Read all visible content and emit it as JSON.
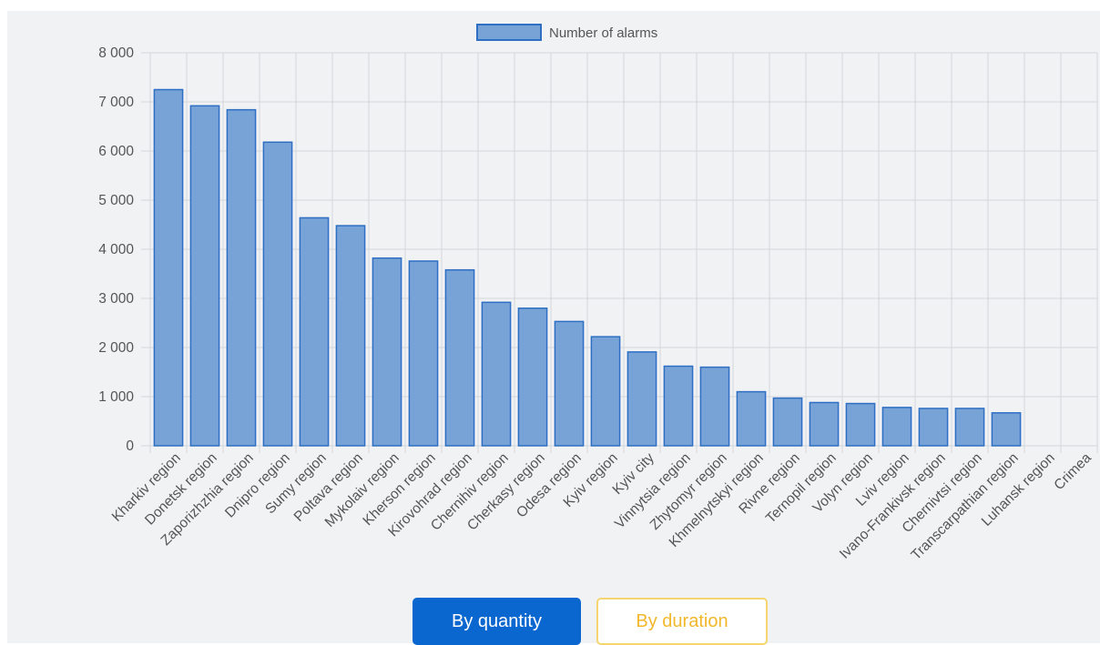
{
  "chart_data": {
    "type": "bar",
    "legend": {
      "label": "Number of alarms",
      "position": "top-center"
    },
    "categories": [
      "Kharkiv region",
      "Donetsk region",
      "Zaporizhzhia region",
      "Dnipro region",
      "Sumy region",
      "Poltava region",
      "Mykolaiv region",
      "Kherson region",
      "Kirovohrad region",
      "Chernihiv region",
      "Cherkasy region",
      "Odesa region",
      "Kyiv region",
      "Kyiv city",
      "Vinnytsia region",
      "Zhytomyr region",
      "Khmelnytskyi region",
      "Rivne region",
      "Ternopil region",
      "Volyn region",
      "Lviv region",
      "Ivano-Frankivsk region",
      "Chernivtsi region",
      "Transcarpathian region",
      "Luhansk region",
      "Crimea"
    ],
    "series": [
      {
        "name": "Number of alarms",
        "values": [
          7250,
          6920,
          6840,
          6180,
          4640,
          4480,
          3820,
          3760,
          3580,
          2920,
          2800,
          2530,
          2220,
          1910,
          1620,
          1600,
          1100,
          970,
          880,
          860,
          780,
          760,
          760,
          670,
          0,
          0
        ]
      }
    ],
    "ylim": [
      0,
      8000
    ],
    "yticks": [
      0,
      1000,
      2000,
      3000,
      4000,
      5000,
      6000,
      7000,
      8000
    ],
    "ytick_labels": [
      "0",
      "1 000",
      "2 000",
      "3 000",
      "4 000",
      "5 000",
      "6 000",
      "7 000",
      "8 000"
    ],
    "grid": true,
    "colors": {
      "bar_fill": "#77a3d6",
      "bar_stroke": "#2e6fc4",
      "grid": "#d3d6da",
      "axis_text": "#555555"
    }
  },
  "buttons": {
    "by_quantity": "By quantity",
    "by_duration": "By duration"
  }
}
